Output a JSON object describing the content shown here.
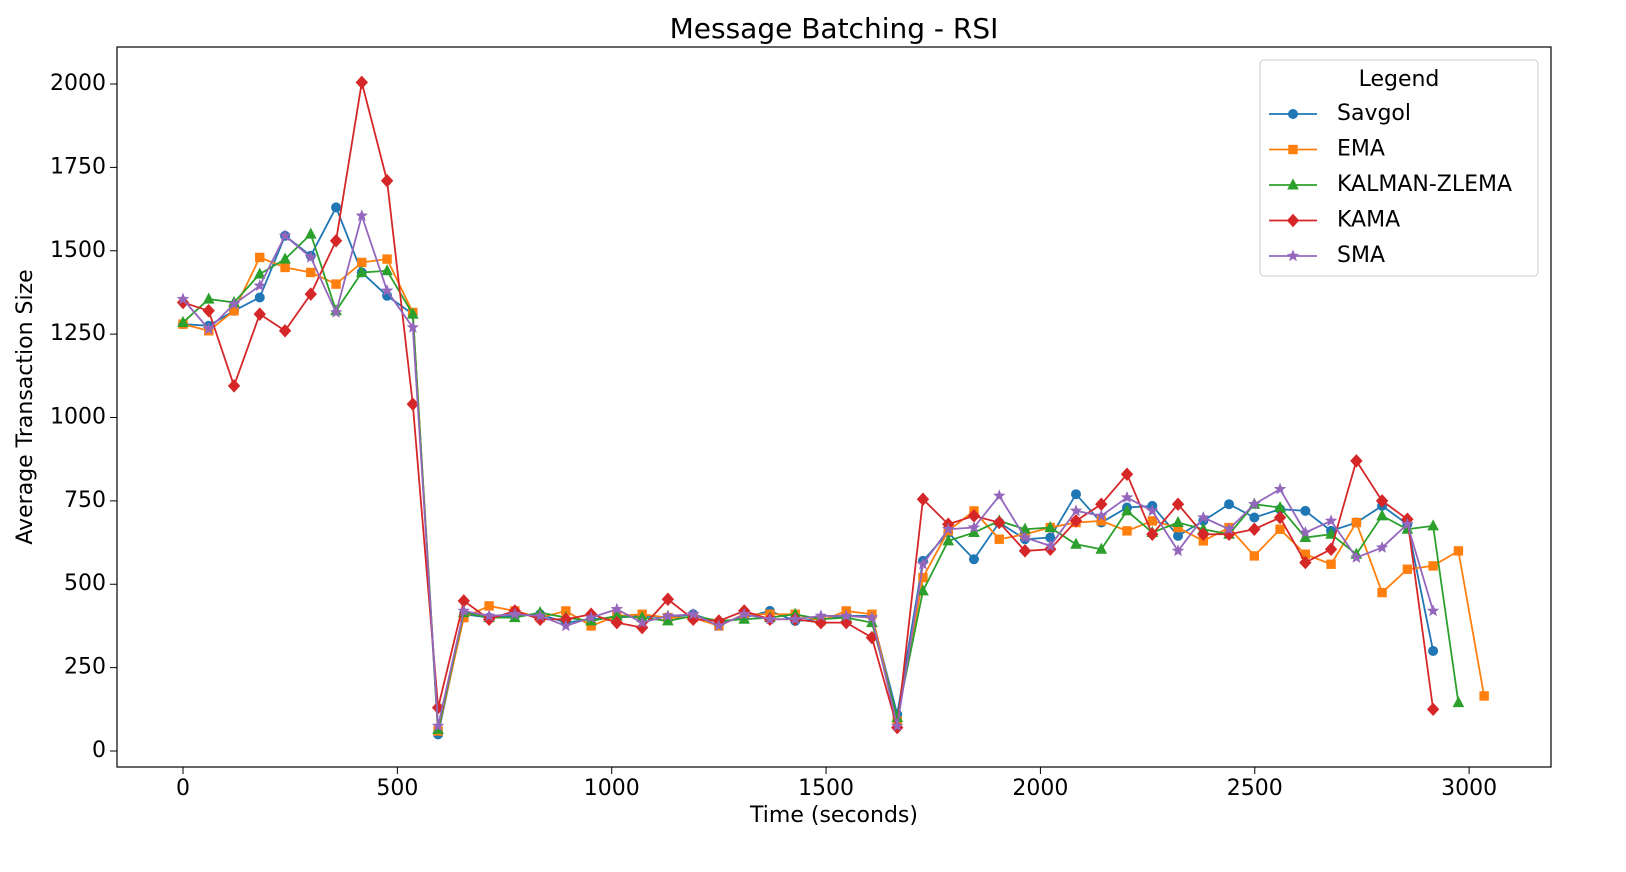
{
  "chart_data": {
    "type": "line",
    "title": "Message Batching - RSI",
    "x_label": "Time (seconds)",
    "y_label": "Average Transaction Size",
    "legend_title": "Legend",
    "legend_loc": "upper right",
    "grid": false,
    "xlim": [
      -154,
      3191
    ],
    "ylim": [
      -48,
      2111
    ],
    "xticks": [
      0,
      500,
      1000,
      1500,
      2000,
      2500,
      3000
    ],
    "yticks": [
      0,
      250,
      500,
      750,
      1000,
      1250,
      1500,
      1750,
      2000
    ],
    "x": [
      0,
      60,
      119,
      179,
      238,
      298,
      357,
      417,
      476,
      536,
      595,
      655,
      714,
      774,
      833,
      893,
      952,
      1012,
      1071,
      1131,
      1190,
      1250,
      1309,
      1369,
      1428,
      1488,
      1547,
      1607,
      1666,
      1726,
      1785,
      1845,
      1904,
      1964,
      2023,
      2083,
      2142,
      2202,
      2261,
      2321,
      2380,
      2440,
      2499,
      2559,
      2618,
      2678,
      2737,
      2797,
      2856,
      2916,
      2975,
      3035
    ],
    "series": [
      {
        "name": "Savgol",
        "color": "#1f77b4",
        "marker": "circle",
        "values": [
          1280,
          1275,
          1320,
          1360,
          1545,
          1485,
          1630,
          1435,
          1365,
          1310,
          50,
          410,
          400,
          405,
          410,
          385,
          395,
          400,
          405,
          400,
          410,
          385,
          400,
          420,
          390,
          395,
          405,
          405,
          110,
          570,
          655,
          575,
          685,
          635,
          640,
          770,
          685,
          730,
          735,
          645,
          690,
          740,
          700,
          725,
          720,
          660,
          685,
          735,
          680,
          300,
          null,
          null
        ]
      },
      {
        "name": "EMA",
        "color": "#ff7f0e",
        "marker": "square",
        "values": [
          1280,
          1260,
          1320,
          1480,
          1450,
          1435,
          1400,
          1465,
          1475,
          1315,
          60,
          400,
          435,
          420,
          400,
          420,
          375,
          405,
          410,
          400,
          400,
          375,
          410,
          410,
          410,
          390,
          420,
          410,
          90,
          520,
          660,
          720,
          635,
          650,
          670,
          685,
          690,
          660,
          690,
          670,
          630,
          670,
          585,
          665,
          590,
          560,
          685,
          475,
          545,
          555,
          600,
          165
        ]
      },
      {
        "name": "KALMAN-ZLEMA",
        "color": "#2ca02c",
        "marker": "triangle",
        "values": [
          1285,
          1355,
          1345,
          1430,
          1475,
          1550,
          1320,
          1435,
          1440,
          1310,
          65,
          415,
          400,
          400,
          415,
          400,
          390,
          405,
          400,
          390,
          405,
          390,
          395,
          400,
          410,
          395,
          400,
          385,
          100,
          480,
          630,
          655,
          690,
          665,
          670,
          620,
          605,
          720,
          655,
          685,
          665,
          650,
          740,
          730,
          640,
          650,
          590,
          705,
          665,
          675,
          145,
          null
        ]
      },
      {
        "name": "KAMA",
        "color": "#d62728",
        "marker": "diamond",
        "values": [
          1345,
          1320,
          1095,
          1310,
          1260,
          1370,
          1530,
          2005,
          1710,
          1040,
          130,
          450,
          395,
          420,
          395,
          395,
          410,
          385,
          370,
          455,
          395,
          390,
          420,
          395,
          395,
          385,
          385,
          340,
          70,
          755,
          680,
          705,
          685,
          600,
          605,
          690,
          740,
          830,
          650,
          740,
          650,
          650,
          665,
          700,
          565,
          605,
          870,
          750,
          695,
          125,
          null,
          null
        ]
      },
      {
        "name": "SMA",
        "color": "#9467bd",
        "marker": "star",
        "values": [
          1355,
          1265,
          1340,
          1395,
          1545,
          1480,
          1315,
          1605,
          1380,
          1270,
          75,
          420,
          405,
          410,
          405,
          375,
          400,
          425,
          385,
          405,
          410,
          375,
          410,
          395,
          395,
          405,
          405,
          400,
          75,
          560,
          665,
          670,
          765,
          640,
          615,
          720,
          705,
          760,
          720,
          600,
          700,
          665,
          740,
          785,
          655,
          690,
          580,
          610,
          680,
          420,
          null,
          null
        ]
      }
    ]
  }
}
